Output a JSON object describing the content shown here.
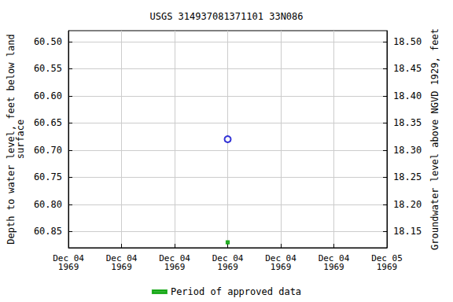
{
  "chart_data": {
    "type": "scatter",
    "title": "USGS 314937081371101 33N086",
    "y_label": "Depth to water level, feet below land\nsurface",
    "y2_label": "Groundwater level above NGVD 1929, feet",
    "categories": [
      "Dec 04\n1969",
      "Dec 04\n1969",
      "Dec 04\n1969",
      "Dec 04\n1969",
      "Dec 04\n1969",
      "Dec 04\n1969",
      "Dec 05\n1969"
    ],
    "ylim": [
      60.48,
      60.88
    ],
    "yticks": [
      {
        "value": 60.5,
        "label": "60.50"
      },
      {
        "value": 60.55,
        "label": "60.55"
      },
      {
        "value": 60.6,
        "label": "60.60"
      },
      {
        "value": 60.65,
        "label": "60.65"
      },
      {
        "value": 60.7,
        "label": "60.70"
      },
      {
        "value": 60.75,
        "label": "60.75"
      },
      {
        "value": 60.8,
        "label": "60.80"
      },
      {
        "value": 60.85,
        "label": "60.85"
      }
    ],
    "y2lim": [
      18.12,
      18.52
    ],
    "y2ticks": [
      {
        "value": 18.15,
        "label": "18.15"
      },
      {
        "value": 18.2,
        "label": "18.20"
      },
      {
        "value": 18.25,
        "label": "18.25"
      },
      {
        "value": 18.3,
        "label": "18.30"
      },
      {
        "value": 18.35,
        "label": "18.35"
      },
      {
        "value": 18.4,
        "label": "18.40"
      },
      {
        "value": 18.45,
        "label": "18.45"
      },
      {
        "value": 18.5,
        "label": "18.50"
      }
    ],
    "series": [
      {
        "color": "#0000cc",
        "marker": "circle",
        "values": [
          null,
          null,
          null,
          60.68,
          null,
          null,
          null
        ]
      },
      {
        "name": "Period of approved data",
        "color": "#00a000",
        "marker": "square",
        "values": [
          null,
          null,
          null,
          60.87,
          null,
          null,
          null
        ]
      }
    ],
    "grid": true,
    "legend": "bottom"
  }
}
